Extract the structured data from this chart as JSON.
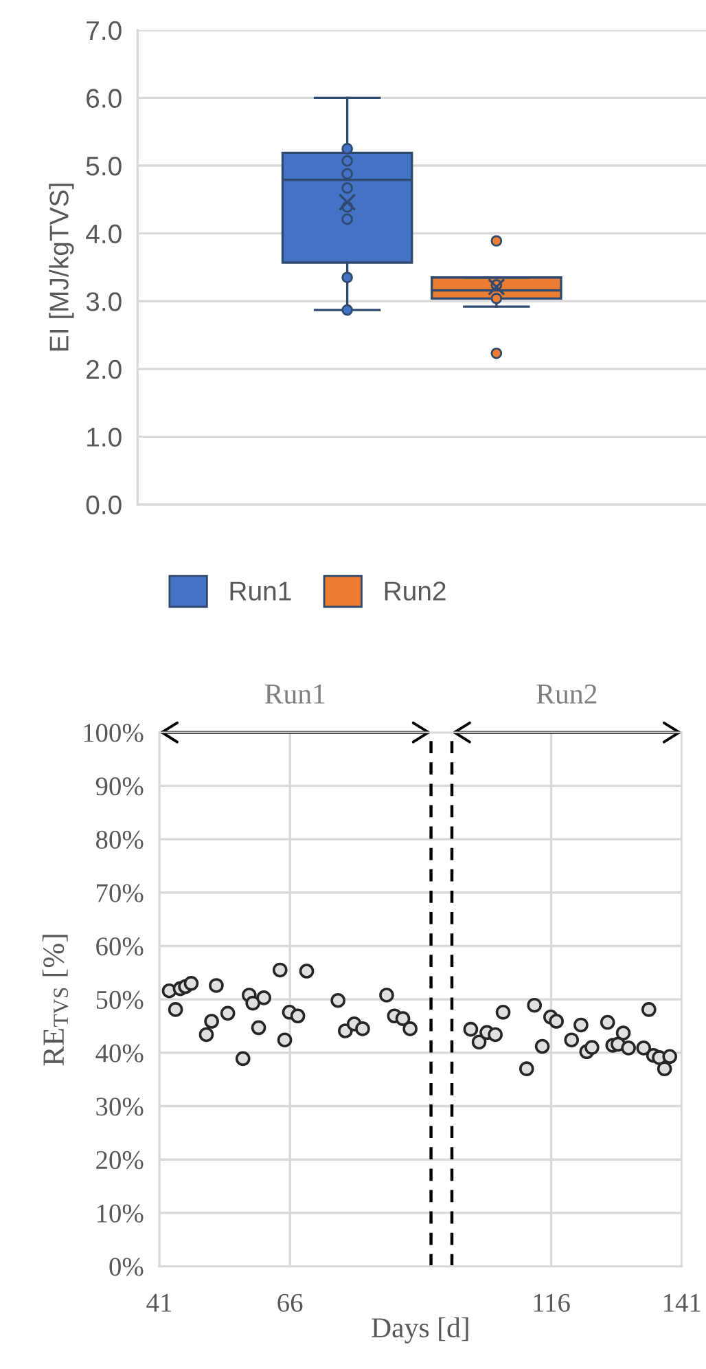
{
  "chart_data": [
    {
      "type": "box",
      "ylabel": "EI [MJ/kgTVS]",
      "categories": [
        null
      ],
      "ylim": [
        0,
        7
      ],
      "yticks": [
        {
          "value": 0,
          "label": "0.0"
        },
        {
          "value": 1,
          "label": "1.0"
        },
        {
          "value": 2,
          "label": "2.0"
        },
        {
          "value": 3,
          "label": "3.0"
        },
        {
          "value": 4,
          "label": "4.0"
        },
        {
          "value": 5,
          "label": "5.0"
        },
        {
          "value": 6,
          "label": "6.0"
        },
        {
          "value": 7,
          "label": "7.0"
        }
      ],
      "grid": "y",
      "legend": "bottom",
      "tick_labels": "y",
      "series": [
        {
          "name": "Run1",
          "color": "#4472c4",
          "boxes": [
            {
              "low": 2.87,
              "q1": 3.57,
              "median": 4.79,
              "q3": 5.19,
              "high": 6.0,
              "mean": 4.46,
              "outliers": [
                5.25,
                5.07,
                4.88,
                4.67,
                4.39,
                4.21,
                3.35,
                2.87
              ]
            }
          ]
        },
        {
          "name": "Run2",
          "color": "#ed7d31",
          "boxes": [
            {
              "low": 2.92,
              "q1": 3.04,
              "median": 3.16,
              "q3": 3.35,
              "high": 3.35,
              "mean": 3.21,
              "outliers": [
                3.89,
                2.23,
                3.04,
                3.24
              ]
            }
          ]
        }
      ]
    },
    {
      "type": "scatter",
      "xlabel": "Days [d]",
      "ylabel": "RE$_{TVS}$ [%]",
      "xlim": [
        41,
        141
      ],
      "xticks": [
        41,
        66,
        116,
        141
      ],
      "ylim": [
        0,
        100
      ],
      "yticks": [
        {
          "value": 0,
          "label": "0%"
        },
        {
          "value": 10,
          "label": "10%"
        },
        {
          "value": 20,
          "label": "20%"
        },
        {
          "value": 30,
          "label": "30%"
        },
        {
          "value": 40,
          "label": "40%"
        },
        {
          "value": 50,
          "label": "50%"
        },
        {
          "value": 60,
          "label": "60%"
        },
        {
          "value": 70,
          "label": "70%"
        },
        {
          "value": 80,
          "label": "80%"
        },
        {
          "value": 90,
          "label": "90%"
        },
        {
          "value": 100,
          "label": "100%"
        }
      ],
      "grid": true,
      "marker": "circle",
      "ref_lines": [
        {
          "axis": "x",
          "value": 93,
          "color": "#000000",
          "line_style": "dashed"
        },
        {
          "axis": "x",
          "value": 97,
          "color": "#000000",
          "line_style": "dashed"
        }
      ],
      "annotations": [
        "Run1",
        "Run2"
      ],
      "series": [
        {
          "color": "#e0e0e0",
          "x": [
            42.9,
            44.1,
            45.0,
            46.0,
            47.1,
            50.0,
            51.0,
            51.9,
            54.1,
            57.0,
            58.2,
            58.9,
            60.0,
            61.0,
            64.1,
            65.0,
            65.9,
            67.5,
            69.2,
            75.2,
            76.6,
            78.3,
            79.9,
            84.5,
            86.0,
            87.6,
            89.0,
            100.6,
            102.2,
            103.7,
            105.3,
            106.8,
            111.3,
            112.8,
            114.3,
            115.9,
            117.0,
            119.9,
            121.7,
            122.8,
            123.8,
            126.8,
            127.8,
            128.8,
            129.8,
            130.8,
            133.7,
            134.7,
            135.6,
            136.7,
            137.7,
            138.7
          ],
          "values": [
            51.6,
            48.1,
            52.0,
            52.4,
            53.0,
            43.4,
            45.9,
            52.6,
            47.4,
            38.9,
            50.8,
            49.3,
            44.7,
            50.3,
            55.5,
            42.4,
            47.6,
            46.9,
            55.3,
            49.8,
            44.1,
            45.4,
            44.5,
            50.8,
            46.9,
            46.4,
            44.5,
            44.4,
            42.0,
            43.8,
            43.4,
            47.6,
            37.0,
            48.9,
            41.2,
            46.7,
            45.9,
            42.4,
            45.2,
            40.2,
            41.0,
            45.7,
            41.4,
            41.6,
            43.7,
            40.9,
            40.9,
            48.1,
            39.5,
            39.1,
            37.0,
            39.3
          ]
        }
      ]
    }
  ]
}
